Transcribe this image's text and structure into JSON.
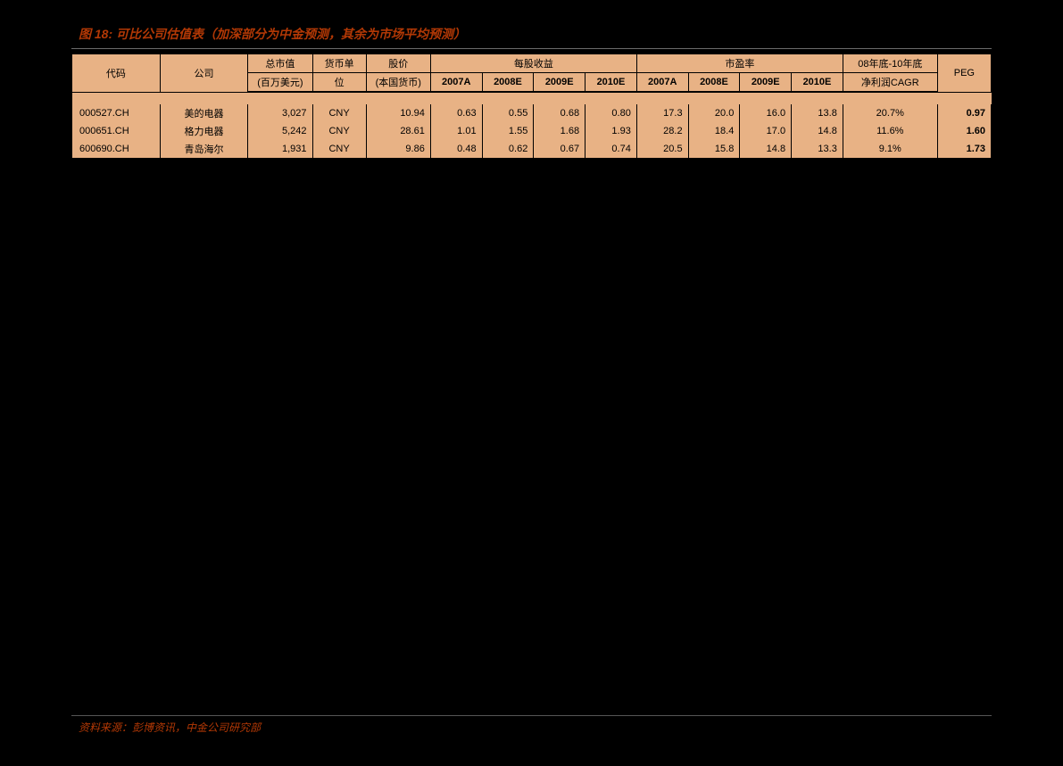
{
  "title": "图 18:  可比公司估值表（加深部分为中金预测，其余为市场平均预测）",
  "source": "资料来源：彭博资讯，中金公司研究部",
  "headers": {
    "code": "代码",
    "company": "公司",
    "mktcap_top": "总市值",
    "mktcap_sub": "(百万美元)",
    "currency_top": "货币单",
    "currency_sub": "位",
    "price_top": "股价",
    "price_sub": "(本国货币)",
    "eps_group": "每股收益",
    "pe_group": "市盈率",
    "cagr_top": "08年底-10年底",
    "cagr_sub": "净利润CAGR",
    "peg": "PEG",
    "y2007a": "2007A",
    "y2008e": "2008E",
    "y2009e": "2009E",
    "y2010e": "2010E"
  },
  "rows": [
    {
      "code": "000527.CH",
      "company": "美的电器",
      "mktcap": "3,027",
      "curr": "CNY",
      "price": "10.94",
      "eps2007": "0.63",
      "eps2008": "0.55",
      "eps2009": "0.68",
      "eps2010": "0.80",
      "pe2007": "17.3",
      "pe2008": "20.0",
      "pe2009": "16.0",
      "pe2010": "13.8",
      "cagr": "20.7%",
      "peg": "0.97"
    },
    {
      "code": "000651.CH",
      "company": "格力电器",
      "mktcap": "5,242",
      "curr": "CNY",
      "price": "28.61",
      "eps2007": "1.01",
      "eps2008": "1.55",
      "eps2009": "1.68",
      "eps2010": "1.93",
      "pe2007": "28.2",
      "pe2008": "18.4",
      "pe2009": "17.0",
      "pe2010": "14.8",
      "cagr": "11.6%",
      "peg": "1.60"
    },
    {
      "code": "600690.CH",
      "company": "青岛海尔",
      "mktcap": "1,931",
      "curr": "CNY",
      "price": "9.86",
      "eps2007": "0.48",
      "eps2008": "0.62",
      "eps2009": "0.67",
      "eps2010": "0.74",
      "pe2007": "20.5",
      "pe2008": "15.8",
      "pe2009": "14.8",
      "pe2010": "13.3",
      "cagr": "9.1%",
      "peg": "1.73"
    }
  ],
  "colors": {
    "background": "#000000",
    "table_bg": "#e8b285",
    "accent": "#b23805",
    "border": "#000000"
  }
}
